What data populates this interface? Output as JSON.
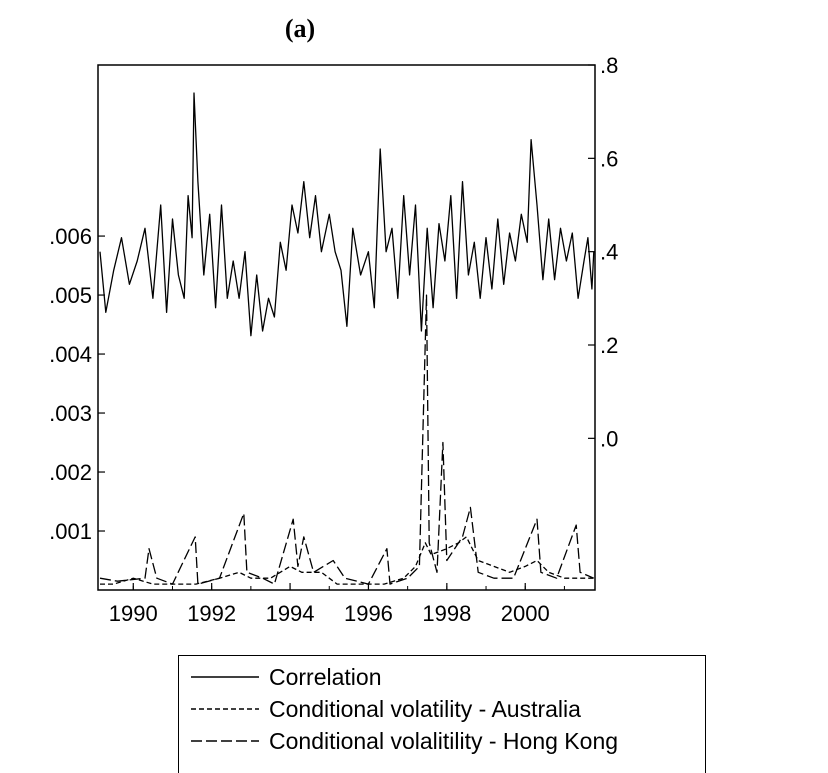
{
  "chart_data": {
    "type": "line",
    "title": "(a)",
    "xlabel": "",
    "left_axis": {
      "ticks": [
        ".001",
        ".002",
        ".003",
        ".004",
        ".005",
        ".006"
      ],
      "values": [
        0.001,
        0.002,
        0.003,
        0.004,
        0.005,
        0.006
      ],
      "range": [
        0,
        0.0089
      ]
    },
    "right_axis": {
      "ticks": [
        ".0",
        ".2",
        ".4",
        ".6",
        ".8"
      ],
      "values": [
        0.0,
        0.2,
        0.4,
        0.6,
        0.8
      ],
      "range": [
        -0.325,
        0.8
      ]
    },
    "x_ticks": [
      "1990",
      "1992",
      "1994",
      "1996",
      "1998",
      "2000"
    ],
    "x_tick_values": [
      1990,
      1992,
      1994,
      1996,
      1998,
      2000
    ],
    "xlim": [
      1989.1,
      2001.78
    ],
    "series": [
      {
        "name": "Correlation",
        "axis": "right",
        "style": "solid",
        "points": [
          [
            1989.15,
            0.4
          ],
          [
            1989.3,
            0.27
          ],
          [
            1989.5,
            0.36
          ],
          [
            1989.7,
            0.43
          ],
          [
            1989.9,
            0.33
          ],
          [
            1990.1,
            0.38
          ],
          [
            1990.3,
            0.45
          ],
          [
            1990.5,
            0.3
          ],
          [
            1990.7,
            0.5
          ],
          [
            1990.85,
            0.27
          ],
          [
            1991.0,
            0.47
          ],
          [
            1991.15,
            0.35
          ],
          [
            1991.3,
            0.3
          ],
          [
            1991.4,
            0.52
          ],
          [
            1991.5,
            0.43
          ],
          [
            1991.55,
            0.74
          ],
          [
            1991.65,
            0.55
          ],
          [
            1991.8,
            0.35
          ],
          [
            1991.95,
            0.48
          ],
          [
            1992.1,
            0.28
          ],
          [
            1992.25,
            0.5
          ],
          [
            1992.4,
            0.3
          ],
          [
            1992.55,
            0.38
          ],
          [
            1992.7,
            0.3
          ],
          [
            1992.85,
            0.4
          ],
          [
            1993.0,
            0.22
          ],
          [
            1993.15,
            0.35
          ],
          [
            1993.3,
            0.23
          ],
          [
            1993.45,
            0.3
          ],
          [
            1993.6,
            0.26
          ],
          [
            1993.75,
            0.42
          ],
          [
            1993.9,
            0.36
          ],
          [
            1994.05,
            0.5
          ],
          [
            1994.2,
            0.44
          ],
          [
            1994.35,
            0.55
          ],
          [
            1994.5,
            0.43
          ],
          [
            1994.65,
            0.52
          ],
          [
            1994.8,
            0.4
          ],
          [
            1995.0,
            0.48
          ],
          [
            1995.15,
            0.4
          ],
          [
            1995.3,
            0.36
          ],
          [
            1995.45,
            0.24
          ],
          [
            1995.6,
            0.45
          ],
          [
            1995.8,
            0.35
          ],
          [
            1996.0,
            0.4
          ],
          [
            1996.15,
            0.28
          ],
          [
            1996.3,
            0.62
          ],
          [
            1996.45,
            0.4
          ],
          [
            1996.6,
            0.45
          ],
          [
            1996.75,
            0.3
          ],
          [
            1996.9,
            0.52
          ],
          [
            1997.05,
            0.35
          ],
          [
            1997.2,
            0.5
          ],
          [
            1997.35,
            0.23
          ],
          [
            1997.5,
            0.45
          ],
          [
            1997.65,
            0.28
          ],
          [
            1997.8,
            0.46
          ],
          [
            1997.95,
            0.38
          ],
          [
            1998.1,
            0.52
          ],
          [
            1998.25,
            0.3
          ],
          [
            1998.4,
            0.55
          ],
          [
            1998.55,
            0.35
          ],
          [
            1998.7,
            0.42
          ],
          [
            1998.85,
            0.3
          ],
          [
            1999.0,
            0.43
          ],
          [
            1999.15,
            0.32
          ],
          [
            1999.3,
            0.47
          ],
          [
            1999.45,
            0.33
          ],
          [
            1999.6,
            0.44
          ],
          [
            1999.75,
            0.38
          ],
          [
            1999.9,
            0.48
          ],
          [
            2000.05,
            0.42
          ],
          [
            2000.15,
            0.64
          ],
          [
            2000.3,
            0.5
          ],
          [
            2000.45,
            0.34
          ],
          [
            2000.6,
            0.47
          ],
          [
            2000.75,
            0.34
          ],
          [
            2000.9,
            0.45
          ],
          [
            2001.05,
            0.38
          ],
          [
            2001.2,
            0.44
          ],
          [
            2001.35,
            0.3
          ],
          [
            2001.5,
            0.38
          ],
          [
            2001.6,
            0.43
          ],
          [
            2001.7,
            0.32
          ],
          [
            2001.75,
            0.4
          ]
        ]
      },
      {
        "name": "Conditional volatility - Australia",
        "axis": "left",
        "style": "dashed",
        "points": [
          [
            1989.15,
            0.0001
          ],
          [
            1989.5,
            0.0001
          ],
          [
            1990.0,
            0.0002
          ],
          [
            1990.5,
            0.0001
          ],
          [
            1991.0,
            0.0001
          ],
          [
            1991.6,
            0.0001
          ],
          [
            1992.2,
            0.0002
          ],
          [
            1992.7,
            0.0003
          ],
          [
            1993.0,
            0.0002
          ],
          [
            1993.5,
            0.0002
          ],
          [
            1994.0,
            0.0004
          ],
          [
            1994.3,
            0.0003
          ],
          [
            1994.8,
            0.0003
          ],
          [
            1995.2,
            0.0001
          ],
          [
            1995.8,
            0.0001
          ],
          [
            1996.4,
            0.0001
          ],
          [
            1996.9,
            0.0002
          ],
          [
            1997.2,
            0.0004
          ],
          [
            1997.45,
            0.0008
          ],
          [
            1997.6,
            0.0006
          ],
          [
            1998.0,
            0.0007
          ],
          [
            1998.3,
            0.0008
          ],
          [
            1998.5,
            0.0009
          ],
          [
            1998.8,
            0.0005
          ],
          [
            1999.2,
            0.0004
          ],
          [
            1999.6,
            0.0003
          ],
          [
            2000.0,
            0.0004
          ],
          [
            2000.3,
            0.0005
          ],
          [
            2000.6,
            0.0003
          ],
          [
            2001.0,
            0.0002
          ],
          [
            2001.4,
            0.0002
          ],
          [
            2001.75,
            0.0002
          ]
        ]
      },
      {
        "name": "Conditional volalitility - Hong Kong",
        "axis": "left",
        "style": "longdash",
        "points": [
          [
            1989.15,
            0.0002
          ],
          [
            1989.6,
            0.00015
          ],
          [
            1990.3,
            0.0002
          ],
          [
            1990.4,
            0.0007
          ],
          [
            1990.6,
            0.0002
          ],
          [
            1991.0,
            0.0001
          ],
          [
            1991.58,
            0.0009
          ],
          [
            1991.65,
            0.0001
          ],
          [
            1992.2,
            0.0002
          ],
          [
            1992.82,
            0.0013
          ],
          [
            1992.9,
            0.0003
          ],
          [
            1993.3,
            0.0002
          ],
          [
            1993.6,
            0.0001
          ],
          [
            1994.08,
            0.0012
          ],
          [
            1994.2,
            0.0004
          ],
          [
            1994.35,
            0.0009
          ],
          [
            1994.6,
            0.0003
          ],
          [
            1995.1,
            0.0005
          ],
          [
            1995.4,
            0.0002
          ],
          [
            1996.0,
            0.0001
          ],
          [
            1996.47,
            0.0007
          ],
          [
            1996.55,
            0.0001
          ],
          [
            1997.0,
            0.0002
          ],
          [
            1997.3,
            0.0004
          ],
          [
            1997.48,
            0.005
          ],
          [
            1997.55,
            0.0008
          ],
          [
            1997.75,
            0.0003
          ],
          [
            1997.9,
            0.0025
          ],
          [
            1998.0,
            0.0005
          ],
          [
            1998.4,
            0.0009
          ],
          [
            1998.6,
            0.0014
          ],
          [
            1998.8,
            0.0003
          ],
          [
            1999.2,
            0.0002
          ],
          [
            1999.7,
            0.0002
          ],
          [
            2000.3,
            0.0012
          ],
          [
            2000.4,
            0.0003
          ],
          [
            2000.8,
            0.0002
          ],
          [
            2001.3,
            0.0011
          ],
          [
            2001.4,
            0.0003
          ],
          [
            2001.75,
            0.0002
          ]
        ]
      }
    ],
    "legend": {
      "placement": "bottom",
      "entries": [
        {
          "label": "Correlation",
          "style": "solid"
        },
        {
          "label": "Conditional volatility - Australia",
          "style": "dashed"
        },
        {
          "label": "Conditional volalitility - Hong Kong",
          "style": "longdash"
        }
      ]
    }
  }
}
